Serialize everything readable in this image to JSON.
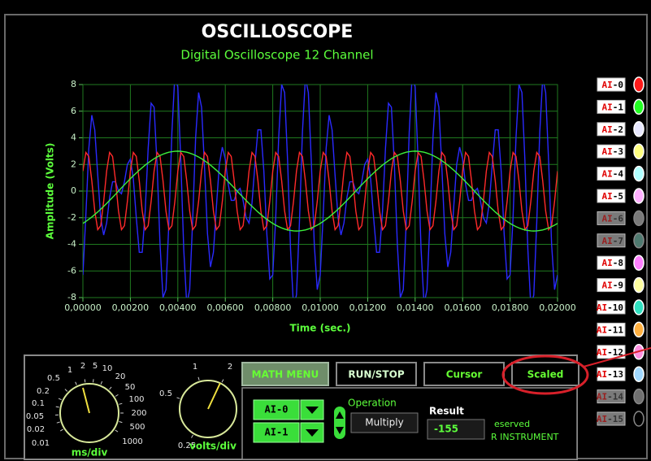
{
  "header": {
    "title": "OSCILLOSCOPE",
    "subtitle": "Digital Oscilloscope 12 Channel"
  },
  "chart_data": {
    "type": "line",
    "x": [
      0,
      0.000125,
      0.00025,
      0.000375,
      0.0005,
      0.000625,
      0.00075,
      0.000875,
      0.001,
      0.001125,
      0.00125,
      0.001375,
      0.0015,
      0.001625,
      0.00175,
      0.001875,
      0.002,
      0.002125,
      0.00225,
      0.002375,
      0.0025,
      0.002625,
      0.00275,
      0.002875,
      0.003,
      0.003125,
      0.00325,
      0.003375,
      0.0035,
      0.003625,
      0.00375,
      0.003875,
      0.004,
      0.004125,
      0.00425,
      0.004375,
      0.0045,
      0.004625,
      0.00475,
      0.004875,
      0.005,
      0.005125,
      0.00525,
      0.005375,
      0.0055,
      0.005625,
      0.00575,
      0.005875,
      0.006,
      0.006125,
      0.00625,
      0.006375,
      0.0065,
      0.006625,
      0.00675,
      0.006875,
      0.007,
      0.007125,
      0.00725,
      0.007375,
      0.0075,
      0.007625,
      0.00775,
      0.007875,
      0.008,
      0.008125,
      0.00825,
      0.008375,
      0.0085,
      0.008625,
      0.00875,
      0.008875,
      0.009,
      0.009125,
      0.00925,
      0.009375,
      0.0095,
      0.009625,
      0.00975,
      0.009875,
      0.01,
      0.010125,
      0.01025,
      0.010375,
      0.0105,
      0.010625,
      0.01075,
      0.010875,
      0.011,
      0.011125,
      0.01125,
      0.011375,
      0.0115,
      0.011625,
      0.01175,
      0.011875,
      0.012,
      0.012125,
      0.01225,
      0.012375,
      0.0125,
      0.012625,
      0.01275,
      0.012875,
      0.013,
      0.013125,
      0.01325,
      0.013375,
      0.0135,
      0.013625,
      0.01375,
      0.013875,
      0.014,
      0.014125,
      0.01425,
      0.014375,
      0.0145,
      0.014625,
      0.01475,
      0.014875,
      0.015,
      0.015125,
      0.01525,
      0.015375,
      0.0155,
      0.015625,
      0.01575,
      0.015875,
      0.016,
      0.016125,
      0.01625,
      0.016375,
      0.0165,
      0.016625,
      0.01675,
      0.016875,
      0.017,
      0.017125,
      0.01725,
      0.017375,
      0.0175,
      0.017625,
      0.01775,
      0.017875,
      0.018,
      0.018125,
      0.01825,
      0.018375,
      0.0185,
      0.018625,
      0.01875,
      0.018875,
      0.019,
      0.019125,
      0.01925,
      0.019375,
      0.0195,
      0.019625,
      0.01975,
      0.019875,
      0.02
    ],
    "series": [
      {
        "color": "#2a2aff",
        "values": [
          -6.3,
          -1.8,
          3.2,
          5.7,
          4.6,
          1.2,
          -2,
          -3.3,
          -2.4,
          -0.5,
          0.7,
          0.7,
          0,
          -0.2,
          0.7,
          2,
          2.4,
          0.9,
          -2,
          -4.6,
          -4.6,
          -1.5,
          3.2,
          6.6,
          6.3,
          2,
          -4,
          -8,
          -7.4,
          -2.3,
          4.4,
          8.7,
          7.8,
          2.3,
          -4.4,
          -8.5,
          -7.4,
          -2.2,
          4,
          7.4,
          6.3,
          1.8,
          -3.2,
          -5.7,
          -4.6,
          -1.2,
          2,
          3.3,
          2.4,
          0.5,
          -0.7,
          -0.7,
          0,
          0.2,
          -0.7,
          -2,
          -2.4,
          -0.9,
          2,
          4.6,
          4.6,
          1.5,
          -3.2,
          -6.6,
          -6.3,
          -2,
          4,
          8,
          7.4,
          2.3,
          -4.4,
          -8.7,
          -7.8,
          -2.3,
          4.4,
          8.5,
          7.4,
          2.2,
          -4,
          -7.4,
          -6.3,
          -1.8,
          3.2,
          5.7,
          4.6,
          1.2,
          -2,
          -3.3,
          -2.4,
          -0.5,
          0.7,
          0.7,
          0,
          -0.2,
          0.7,
          2,
          2.4,
          0.9,
          -2,
          -4.6,
          -4.6,
          -1.5,
          3.2,
          6.6,
          6.3,
          2,
          -4,
          -8,
          -7.4,
          -2.3,
          4.4,
          8.7,
          7.8,
          2.3,
          -4.4,
          -8.5,
          -7.4,
          -2.2,
          4,
          7.4,
          6.3,
          1.8,
          -3.2,
          -5.7,
          -4.6,
          -1.2,
          2,
          3.3,
          2.4,
          0.5,
          -0.7,
          -0.7,
          0,
          0.2,
          -0.7,
          -2,
          -2.4,
          -0.9,
          2,
          4.6,
          4.6,
          1.5,
          -3.2,
          -6.6,
          -6.3,
          -2,
          4,
          8,
          7.4,
          2.3,
          -4.4,
          -8.7,
          -7.8,
          -2.3,
          4.4,
          8.5,
          7.4,
          2.2,
          -4,
          -7.4,
          -6.3
        ]
      },
      {
        "color": "#ff2a2a",
        "values": [
          1.5,
          2.9,
          2.6,
          0.78,
          -1.5,
          -2.9,
          -2.6,
          -0.78,
          1.5,
          2.9,
          2.6,
          0.78,
          -1.5,
          -2.9,
          -2.6,
          -0.78,
          1.5,
          2.9,
          2.6,
          0.78,
          -1.5,
          -2.9,
          -2.6,
          -0.78,
          1.5,
          2.9,
          2.6,
          0.78,
          -1.5,
          -2.9,
          -2.6,
          -0.78,
          1.5,
          2.9,
          2.6,
          0.78,
          -1.5,
          -2.9,
          -2.6,
          -0.78,
          1.5,
          2.9,
          2.6,
          0.78,
          -1.5,
          -2.9,
          -2.6,
          -0.78,
          1.5,
          2.9,
          2.6,
          0.78,
          -1.5,
          -2.9,
          -2.6,
          -0.78,
          1.5,
          2.9,
          2.6,
          0.78,
          -1.5,
          -2.9,
          -2.6,
          -0.78,
          1.5,
          2.9,
          2.6,
          0.78,
          -1.5,
          -2.9,
          -2.6,
          -0.78,
          1.5,
          2.9,
          2.6,
          0.78,
          -1.5,
          -2.9,
          -2.6,
          -0.78,
          1.5,
          2.9,
          2.6,
          0.78,
          -1.5,
          -2.9,
          -2.6,
          -0.78,
          1.5,
          2.9,
          2.6,
          0.78,
          -1.5,
          -2.9,
          -2.6,
          -0.78,
          1.5,
          2.9,
          2.6,
          0.78,
          -1.5,
          -2.9,
          -2.6,
          -0.78,
          1.5,
          2.9,
          2.6,
          0.78,
          -1.5,
          -2.9,
          -2.6,
          -0.78,
          1.5,
          2.9,
          2.6,
          0.78,
          -1.5,
          -2.9,
          -2.6,
          -0.78,
          1.5,
          2.9,
          2.6,
          0.78,
          -1.5,
          -2.9,
          -2.6,
          -0.78,
          1.5,
          2.9,
          2.6,
          0.78,
          -1.5,
          -2.9,
          -2.6,
          -0.78,
          1.5,
          2.9,
          2.6,
          0.78,
          -1.5,
          -2.9,
          -2.6,
          -0.78,
          1.5,
          2.9,
          2.6,
          0.78,
          -1.5,
          -2.9,
          -2.6,
          -0.78,
          1.5,
          2.9,
          2.6,
          0.78,
          -1.5,
          -2.9,
          -2.6,
          -0.78,
          1.5
        ]
      },
      {
        "color": "#3cf03c",
        "values": [
          -2.43,
          -2.28,
          -2.12,
          -1.95,
          -1.76,
          -1.57,
          -1.36,
          -1.15,
          -0.93,
          -0.7,
          -0.47,
          -0.24,
          0,
          0.24,
          0.47,
          0.7,
          0.93,
          1.15,
          1.36,
          1.57,
          1.76,
          1.95,
          2.12,
          2.28,
          2.43,
          2.56,
          2.67,
          2.77,
          2.85,
          2.92,
          2.96,
          2.99,
          3,
          2.99,
          2.96,
          2.92,
          2.85,
          2.77,
          2.67,
          2.56,
          2.43,
          2.28,
          2.12,
          1.95,
          1.76,
          1.57,
          1.36,
          1.15,
          0.93,
          0.7,
          0.47,
          0.24,
          0,
          -0.24,
          -0.47,
          -0.7,
          -0.93,
          -1.15,
          -1.36,
          -1.57,
          -1.76,
          -1.95,
          -2.12,
          -2.28,
          -2.43,
          -2.56,
          -2.67,
          -2.77,
          -2.85,
          -2.92,
          -2.96,
          -2.99,
          -3,
          -2.99,
          -2.96,
          -2.92,
          -2.85,
          -2.77,
          -2.67,
          -2.56,
          -2.43,
          -2.28,
          -2.12,
          -1.95,
          -1.76,
          -1.57,
          -1.36,
          -1.15,
          -0.93,
          -0.7,
          -0.47,
          -0.24,
          0,
          0.24,
          0.47,
          0.7,
          0.93,
          1.15,
          1.36,
          1.57,
          1.76,
          1.95,
          2.12,
          2.28,
          2.43,
          2.56,
          2.67,
          2.77,
          2.85,
          2.92,
          2.96,
          2.99,
          3,
          2.99,
          2.96,
          2.92,
          2.85,
          2.77,
          2.67,
          2.56,
          2.43,
          2.28,
          2.12,
          1.95,
          1.76,
          1.57,
          1.36,
          1.15,
          0.93,
          0.7,
          0.47,
          0.24,
          0,
          -0.24,
          -0.47,
          -0.7,
          -0.93,
          -1.15,
          -1.36,
          -1.57,
          -1.76,
          -1.95,
          -2.12,
          -2.28,
          -2.43,
          -2.56,
          -2.67,
          -2.77,
          -2.85,
          -2.92,
          -2.96,
          -2.99,
          -3,
          -2.99,
          -2.96,
          -2.92,
          -2.85,
          -2.77,
          -2.67,
          -2.56,
          -2.43
        ]
      }
    ],
    "xlim": [
      0,
      0.02
    ],
    "ylim": [
      -8,
      8
    ],
    "xticks": [
      {
        "value": 0,
        "label": "0,00000"
      },
      {
        "value": 0.002,
        "label": "0,00200"
      },
      {
        "value": 0.004,
        "label": "0,00400"
      },
      {
        "value": 0.006,
        "label": "0,00600"
      },
      {
        "value": 0.008,
        "label": "0,00800"
      },
      {
        "value": 0.01,
        "label": "0,01000"
      },
      {
        "value": 0.012,
        "label": "0,01200"
      },
      {
        "value": 0.014,
        "label": "0,01400"
      },
      {
        "value": 0.016,
        "label": "0,01600"
      },
      {
        "value": 0.018,
        "label": "0,01800"
      },
      {
        "value": 0.02,
        "label": "0,02000"
      }
    ],
    "yticks": [
      -8,
      -6,
      -4,
      -2,
      0,
      2,
      4,
      6,
      8
    ],
    "xlabel": "Time (sec.)",
    "ylabel": "Amplitude (Volts)",
    "grid": true
  },
  "channels": [
    {
      "prefix": "AI",
      "number": "-0",
      "color": "#ff1a1a",
      "enabled": true
    },
    {
      "prefix": "AI",
      "number": "-1",
      "color": "#22ff22",
      "enabled": true
    },
    {
      "prefix": "AI",
      "number": "-2",
      "color": "#e8e8ff",
      "enabled": true
    },
    {
      "prefix": "AI",
      "number": "-3",
      "color": "#ffff80",
      "enabled": true
    },
    {
      "prefix": "AI",
      "number": "-4",
      "color": "#b0ffff",
      "enabled": true
    },
    {
      "prefix": "AI",
      "number": "-5",
      "color": "#ffb0ff",
      "enabled": true
    },
    {
      "prefix": "AI",
      "number": "-6",
      "color": "#7a7a7a",
      "enabled": false
    },
    {
      "prefix": "AI",
      "number": "-7",
      "color": "#4f7a70",
      "enabled": false
    },
    {
      "prefix": "AI",
      "number": "-8",
      "color": "#ff80ff",
      "enabled": true
    },
    {
      "prefix": "AI",
      "number": "-9",
      "color": "#ffffa0",
      "enabled": true
    },
    {
      "prefix": "AI",
      "number": "-10",
      "color": "#30e0c0",
      "enabled": true
    },
    {
      "prefix": "AI",
      "number": "-11",
      "color": "#ffb040",
      "enabled": true
    },
    {
      "prefix": "AI",
      "number": "-12",
      "color": "#ff90e0",
      "enabled": true
    },
    {
      "prefix": "AI",
      "number": "-13",
      "color": "#a0d8ff",
      "enabled": true
    },
    {
      "prefix": "AI",
      "number": "-14",
      "color": "#707070",
      "enabled": false
    },
    {
      "prefix": "AI",
      "number": "-15",
      "color": "#000000",
      "enabled": false
    }
  ],
  "controls": {
    "timebase": {
      "label": "ms/div",
      "scale": [
        "0.01",
        "0.02",
        "0.05",
        "0.1",
        "0.2",
        "0.5",
        "1",
        "2",
        "5",
        "10",
        "20",
        "50",
        "100",
        "200",
        "500",
        "1000"
      ]
    },
    "volts": {
      "label": "volts/div",
      "scale": [
        "0.25",
        "0.5",
        "1",
        "2"
      ]
    },
    "buttons": [
      "MATH MENU",
      "RUN/STOP",
      "Cursor",
      "Scaled"
    ],
    "inputs": [
      "AI-0",
      "AI-1"
    ],
    "operation_label": "Operation",
    "operation": "Multiply",
    "result_label": "Result",
    "result": -155,
    "footer": [
      "eserved",
      "R INSTRUMENT"
    ]
  }
}
